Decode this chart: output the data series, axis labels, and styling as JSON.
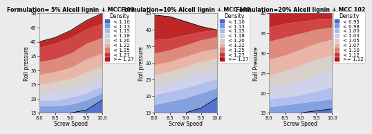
{
  "panels": [
    {
      "title": "Formulation= 5% Alcell lignin + MCC 102",
      "ylabel": "Roll pressure",
      "ylim": [
        15,
        50
      ],
      "yticks": [
        15,
        20,
        25,
        30,
        35,
        40,
        45,
        50
      ],
      "legend_labels": [
        "< 1.10",
        "< 1.13",
        "< 1.15",
        "< 1.18",
        "< 1.20",
        "< 1.22",
        "< 1.25",
        "< 1.27",
        ">= 1.27"
      ],
      "boundary_lines": [
        [
          15.0,
          15.0,
          15.0,
          16.0,
          19.5
        ],
        [
          17.5,
          17.5,
          18.0,
          19.5,
          22.0
        ],
        [
          19.5,
          19.5,
          20.5,
          22.0,
          24.5
        ],
        [
          22.0,
          22.5,
          23.5,
          25.5,
          27.5
        ],
        [
          25.0,
          26.0,
          27.0,
          29.5,
          31.5
        ],
        [
          28.5,
          29.5,
          31.0,
          34.0,
          36.0
        ],
        [
          33.0,
          34.0,
          36.0,
          39.5,
          41.5
        ],
        [
          38.0,
          39.5,
          41.5,
          44.5,
          46.5
        ]
      ],
      "top_line": [
        40.0,
        41.5,
        44.0,
        47.5,
        50.0
      ]
    },
    {
      "title": "Formulation=10% Alcell lignin + MCC 102",
      "ylabel": "Roll pressure",
      "ylim": [
        15,
        45
      ],
      "yticks": [
        15,
        20,
        25,
        30,
        35,
        40,
        45
      ],
      "legend_labels": [
        "< 1.10",
        "< 1.13",
        "< 1.15",
        "< 1.18",
        "< 1.20",
        "< 1.22",
        "< 1.25",
        "< 1.27",
        ">= 1.27"
      ],
      "boundary_lines": [
        [
          15.0,
          15.0,
          15.0,
          16.5,
          19.5
        ],
        [
          17.5,
          18.5,
          19.5,
          21.0,
          22.5
        ],
        [
          20.5,
          21.5,
          22.5,
          24.0,
          25.5
        ],
        [
          23.5,
          24.5,
          26.0,
          27.5,
          28.5
        ],
        [
          26.5,
          27.5,
          29.0,
          30.5,
          31.5
        ],
        [
          29.5,
          30.5,
          32.0,
          33.5,
          34.5
        ],
        [
          33.0,
          34.0,
          35.5,
          37.0,
          38.0
        ],
        [
          37.0,
          37.5,
          38.5,
          39.5,
          40.0
        ]
      ],
      "top_line": [
        44.5,
        44.0,
        42.5,
        41.0,
        40.0
      ]
    },
    {
      "title": "Formulation=20% Alcell lignin + MCC 102",
      "ylabel": "Roll Pressure",
      "ylim": [
        15,
        40
      ],
      "yticks": [
        15,
        20,
        25,
        30,
        35,
        40
      ],
      "legend_labels": [
        "< 0.95",
        "< 0.98",
        "< 1.00",
        "< 1.03",
        "< 1.05",
        "< 1.07",
        "< 1.10",
        "< 1.12",
        ">= 1.12"
      ],
      "boundary_lines": [
        [
          15.0,
          15.0,
          15.0,
          15.5,
          16.0
        ],
        [
          16.5,
          17.0,
          17.5,
          18.0,
          18.5
        ],
        [
          18.5,
          19.0,
          19.5,
          20.5,
          21.5
        ],
        [
          21.5,
          22.0,
          23.0,
          24.5,
          25.5
        ],
        [
          24.5,
          25.5,
          27.0,
          28.5,
          29.5
        ],
        [
          28.5,
          29.5,
          31.0,
          32.5,
          33.5
        ],
        [
          33.0,
          34.0,
          35.0,
          36.0,
          36.5
        ],
        [
          36.5,
          37.5,
          38.0,
          38.5,
          38.5
        ]
      ],
      "top_line": [
        40.0,
        40.0,
        40.0,
        40.0,
        40.0
      ]
    }
  ],
  "screw_speed_range": [
    8.0,
    10.0
  ],
  "x_points": [
    8.0,
    8.5,
    9.0,
    9.5,
    10.0
  ],
  "xlabel": "Screw Speed",
  "xlabel_ticks": [
    8.0,
    8.5,
    9.0,
    9.5,
    10.0
  ],
  "colors": [
    "#4466cc",
    "#7799dd",
    "#aabbee",
    "#ccd0e8",
    "#d8ccc8",
    "#e8b0a0",
    "#dd8070",
    "#cc3333",
    "#bb1111"
  ],
  "bg_color": "#ebebeb",
  "title_fontsize": 5.8,
  "label_fontsize": 5.5,
  "legend_fontsize": 5.0,
  "tick_fontsize": 4.8
}
